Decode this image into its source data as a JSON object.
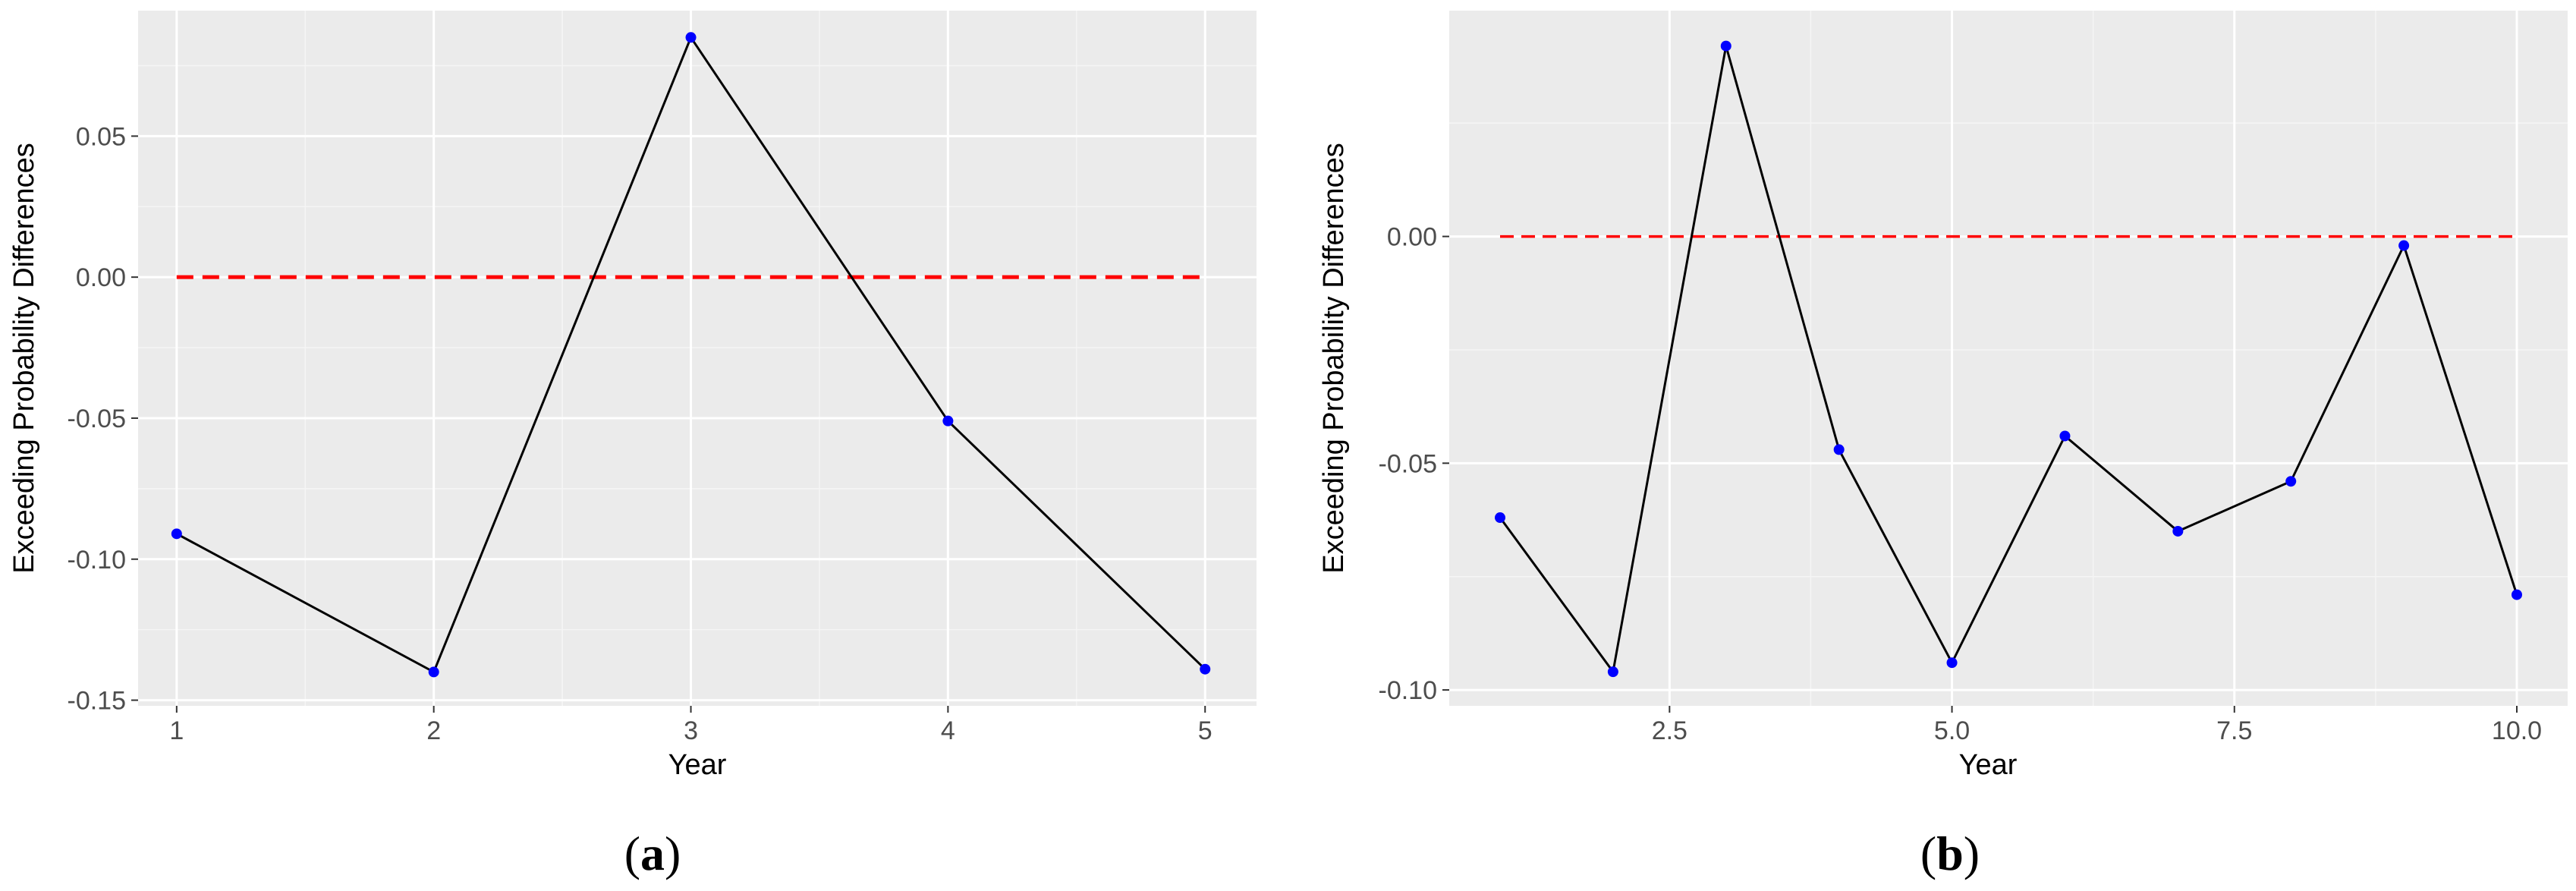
{
  "colors": {
    "panel_bg": "#ebebeb",
    "grid_major": "#ffffff",
    "grid_minor": "#f5f5f5",
    "line": "#000000",
    "point": "#0000ff",
    "reference": "#ff0000"
  },
  "chart_data": [
    {
      "type": "line",
      "panel_label": "(a)",
      "panel_letter": "a",
      "xlabel": "Year",
      "ylabel": "Exceeding Probability Differences",
      "x": [
        1,
        2,
        3,
        4,
        5
      ],
      "series": [
        {
          "values": [
            -0.091,
            -0.14,
            0.085,
            -0.051,
            -0.139
          ]
        }
      ],
      "reference_line": {
        "y": 0.0,
        "x_range": [
          1,
          5
        ],
        "style": "dashed"
      },
      "x_ticks": [
        1,
        2,
        3,
        4,
        5
      ],
      "x_tick_labels": [
        "1",
        "2",
        "3",
        "4",
        "5"
      ],
      "y_ticks": [
        -0.15,
        -0.1,
        -0.05,
        0.0,
        0.05
      ],
      "y_tick_labels": [
        "-0.15",
        "-0.10",
        "-0.05",
        "0.00",
        "0.05"
      ],
      "xlim": [
        0.85,
        5.2
      ],
      "ylim": [
        -0.152,
        0.0945
      ],
      "grid": true,
      "legend": "none"
    },
    {
      "type": "line",
      "panel_label": "(b)",
      "panel_letter": "b",
      "xlabel": "Year",
      "ylabel": "Exceeding Probability Differences",
      "x": [
        1,
        2,
        3,
        4,
        5,
        6,
        7,
        8,
        9,
        10
      ],
      "series": [
        {
          "values": [
            -0.062,
            -0.096,
            0.042,
            -0.047,
            -0.094,
            -0.044,
            -0.065,
            -0.054,
            -0.002,
            -0.079
          ]
        }
      ],
      "reference_line": {
        "y": 0.0,
        "x_range": [
          1,
          10
        ],
        "style": "dashed"
      },
      "x_ticks": [
        2.5,
        5.0,
        7.5,
        10.0
      ],
      "x_tick_labels": [
        "2.5",
        "5.0",
        "7.5",
        "10.0"
      ],
      "y_ticks": [
        -0.1,
        -0.05,
        0.0
      ],
      "y_tick_labels": [
        "-0.10",
        "-0.05",
        "0.00"
      ],
      "xlim": [
        0.55,
        10.45
      ],
      "ylim": [
        -0.1035,
        0.0498
      ],
      "grid": true,
      "legend": "none"
    }
  ]
}
